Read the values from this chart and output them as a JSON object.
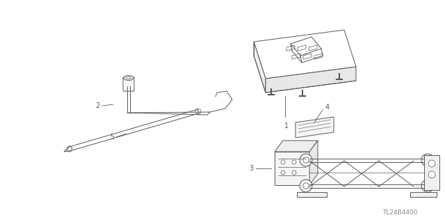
{
  "bg_color": "#ffffff",
  "line_color": "#555555",
  "figsize": [
    6.4,
    3.19
  ],
  "dpi": 100,
  "watermark": "TL24B4400",
  "watermark_color": "#888888",
  "lw": 0.7
}
